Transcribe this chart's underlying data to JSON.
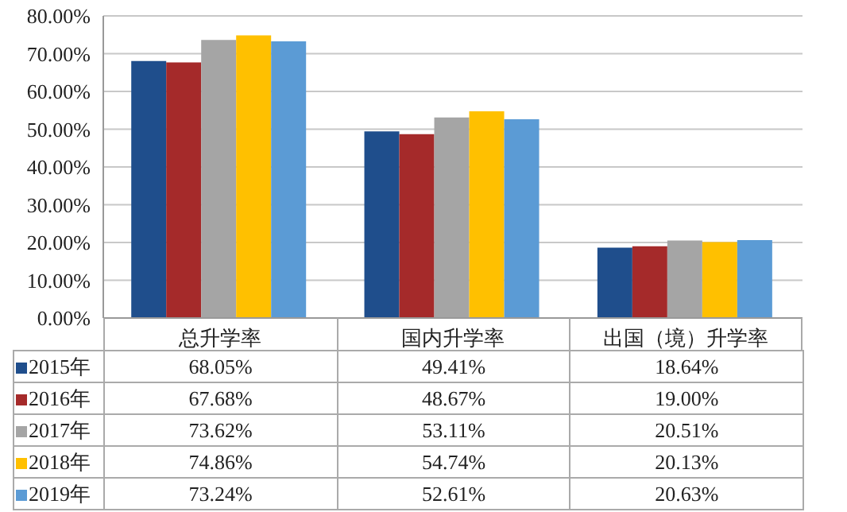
{
  "chart_data": {
    "type": "bar",
    "categories": [
      "总升学率",
      "国内升学率",
      "出国（境）升学率"
    ],
    "series": [
      {
        "name": "2015年",
        "color": "#1f4e8c",
        "values": [
          68.05,
          49.41,
          18.64
        ],
        "value_labels": [
          "68.05%",
          "49.41%",
          "18.64%"
        ]
      },
      {
        "name": "2016年",
        "color": "#a52a2a",
        "values": [
          67.68,
          48.67,
          19.0
        ],
        "value_labels": [
          "67.68%",
          "48.67%",
          "19.00%"
        ]
      },
      {
        "name": "2017年",
        "color": "#a5a5a5",
        "values": [
          73.62,
          53.11,
          20.51
        ],
        "value_labels": [
          "73.62%",
          "53.11%",
          "20.51%"
        ]
      },
      {
        "name": "2018年",
        "color": "#ffc000",
        "values": [
          74.86,
          54.74,
          20.13
        ],
        "value_labels": [
          "74.86%",
          "54.74%",
          "20.13%"
        ]
      },
      {
        "name": "2019年",
        "color": "#5b9bd5",
        "values": [
          73.24,
          52.61,
          20.63
        ],
        "value_labels": [
          "73.24%",
          "52.61%",
          "20.63%"
        ]
      }
    ],
    "ylim": [
      0,
      80
    ],
    "yticks": [
      {
        "value": 0,
        "label": "0.00%"
      },
      {
        "value": 10,
        "label": "10.00%"
      },
      {
        "value": 20,
        "label": "20.00%"
      },
      {
        "value": 30,
        "label": "30.00%"
      },
      {
        "value": 40,
        "label": "40.00%"
      },
      {
        "value": 50,
        "label": "50.00%"
      },
      {
        "value": 60,
        "label": "60.00%"
      },
      {
        "value": 70,
        "label": "70.00%"
      },
      {
        "value": 80,
        "label": "80.00%"
      }
    ],
    "grid": "y",
    "legend": "bottom left"
  }
}
